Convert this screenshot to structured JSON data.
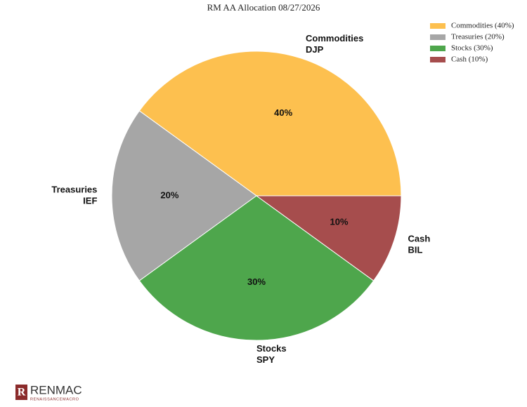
{
  "chart_data": {
    "type": "pie",
    "title": "RM AA Allocation 08/27/2026",
    "categories": [
      "Commodities",
      "Treasuries",
      "Stocks",
      "Cash"
    ],
    "tickers": [
      "DJP",
      "IEF",
      "SPY",
      "BIL"
    ],
    "legend_labels": [
      "Commodities (40%)",
      "Treasuries (20%)",
      "Stocks (30%)",
      "Cash (10%)"
    ],
    "values": [
      40,
      20,
      30,
      10
    ],
    "value_labels": [
      "40%",
      "20%",
      "30%",
      "10%"
    ],
    "colors": [
      "#fdc04f",
      "#a6a6a6",
      "#4ea64c",
      "#a64d4d"
    ],
    "legend": "upper right"
  },
  "logo": {
    "mark": "R",
    "name": "RENMAC",
    "tagline": "RENAISSANCEMACRO"
  }
}
